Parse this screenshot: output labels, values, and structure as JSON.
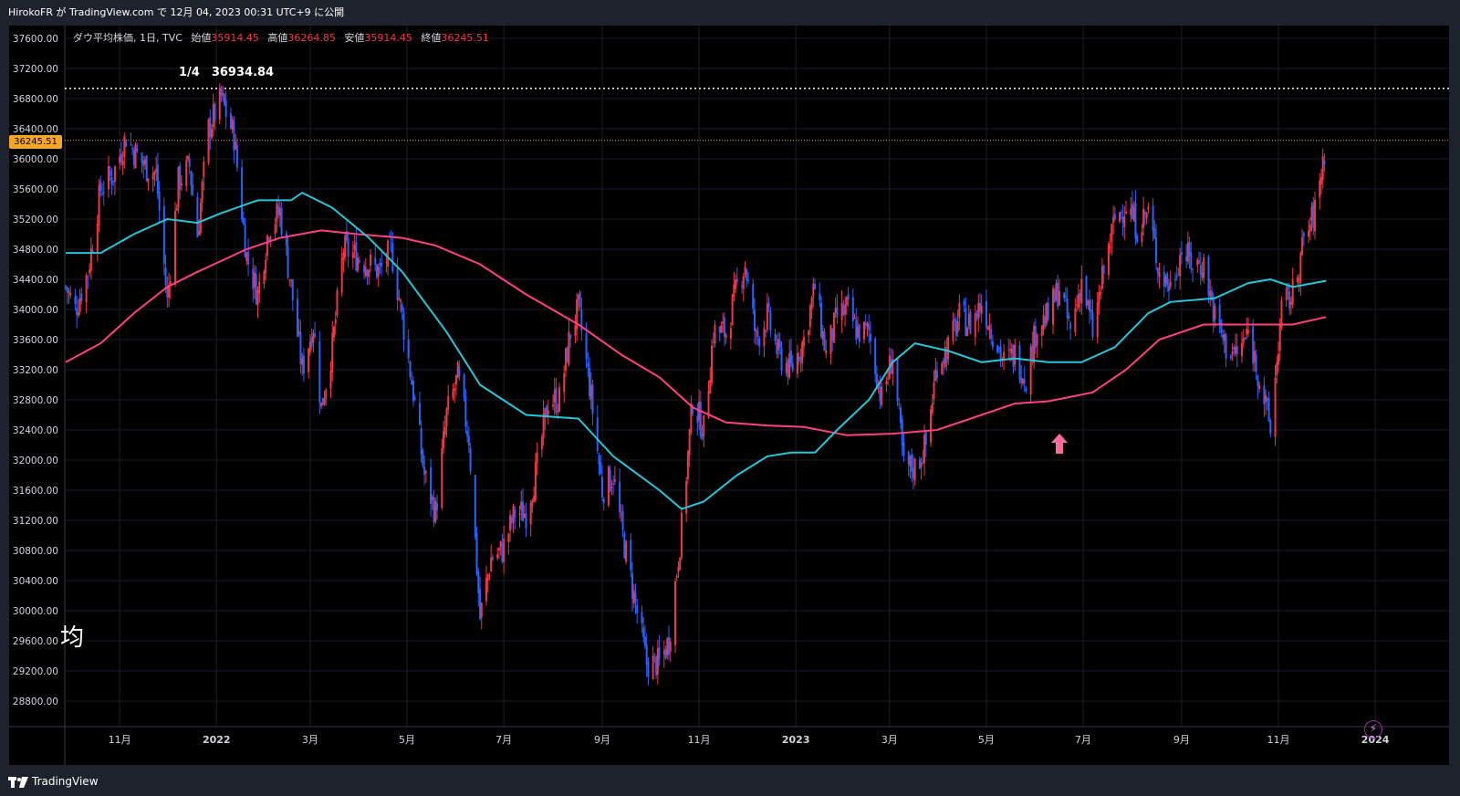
{
  "header": {
    "publish_text": "HirokoFR が TradingView.com で 12月 04, 2023 00:31 UTC+9 に公開"
  },
  "legend": {
    "symbol": "ダウ平均株価, 1日, TVC",
    "open_label": "始値",
    "open": "35914.45",
    "high_label": "高値",
    "high": "36264.85",
    "low_label": "安値",
    "low": "35914.45",
    "close_label": "終値",
    "close": "36245.51"
  },
  "annotation": {
    "text": "1/4　36934.84"
  },
  "watermark_text": "均",
  "price_tag": "36245.51",
  "footer": {
    "brand": "TradingView"
  },
  "colors": {
    "up": "#f23645",
    "down": "#2962ff",
    "ma_fast": "#26c6da",
    "ma_slow": "#ff4081",
    "price_line": "#f5a623",
    "arrow": "#ff6b9d"
  },
  "chart_data": {
    "type": "candlestick",
    "ylim": [
      28500,
      37800
    ],
    "yticks": [
      "37600.00",
      "37200.00",
      "36800.00",
      "36400.00",
      "36000.00",
      "35600.00",
      "35200.00",
      "34800.00",
      "34400.00",
      "34000.00",
      "33600.00",
      "33200.00",
      "32800.00",
      "32400.00",
      "32000.00",
      "31600.00",
      "31200.00",
      "30800.00",
      "30400.00",
      "30000.00",
      "29600.00",
      "29200.00",
      "28800.00"
    ],
    "xticks": [
      {
        "label": "11月",
        "date": "2021-11-01"
      },
      {
        "label": "2022",
        "date": "2022-01-01"
      },
      {
        "label": "3月",
        "date": "2022-03-01"
      },
      {
        "label": "5月",
        "date": "2022-05-01"
      },
      {
        "label": "7月",
        "date": "2022-07-01"
      },
      {
        "label": "9月",
        "date": "2022-09-01"
      },
      {
        "label": "11月",
        "date": "2022-11-01"
      },
      {
        "label": "2023",
        "date": "2023-01-01"
      },
      {
        "label": "3月",
        "date": "2023-03-01"
      },
      {
        "label": "5月",
        "date": "2023-05-01"
      },
      {
        "label": "7月",
        "date": "2023-07-01"
      },
      {
        "label": "9月",
        "date": "2023-09-01"
      },
      {
        "label": "11月",
        "date": "2023-11-01"
      },
      {
        "label": "2024",
        "date": "2024-01-01"
      }
    ],
    "x_range": [
      "2021-09-28",
      "2024-02-05"
    ],
    "price_series": [
      [
        "2021-09-28",
        34300
      ],
      [
        "2021-10-04",
        34000
      ],
      [
        "2021-10-12",
        34500
      ],
      [
        "2021-10-20",
        35600
      ],
      [
        "2021-10-28",
        35800
      ],
      [
        "2021-11-05",
        36300
      ],
      [
        "2021-11-10",
        36100
      ],
      [
        "2021-11-17",
        35900
      ],
      [
        "2021-11-24",
        35800
      ],
      [
        "2021-12-01",
        34100
      ],
      [
        "2021-12-08",
        35700
      ],
      [
        "2021-12-15",
        35900
      ],
      [
        "2021-12-20",
        35000
      ],
      [
        "2021-12-27",
        36400
      ],
      [
        "2022-01-04",
        36800
      ],
      [
        "2022-01-12",
        36300
      ],
      [
        "2022-01-20",
        34700
      ],
      [
        "2022-01-27",
        34200
      ],
      [
        "2022-02-03",
        35100
      ],
      [
        "2022-02-10",
        35300
      ],
      [
        "2022-02-17",
        34300
      ],
      [
        "2022-02-24",
        33200
      ],
      [
        "2022-03-03",
        33800
      ],
      [
        "2022-03-08",
        32700
      ],
      [
        "2022-03-15",
        33500
      ],
      [
        "2022-03-22",
        34800
      ],
      [
        "2022-03-31",
        34700
      ],
      [
        "2022-04-07",
        34600
      ],
      [
        "2022-04-14",
        34500
      ],
      [
        "2022-04-21",
        34800
      ],
      [
        "2022-04-28",
        33900
      ],
      [
        "2022-05-05",
        32900
      ],
      [
        "2022-05-12",
        31800
      ],
      [
        "2022-05-19",
        31300
      ],
      [
        "2022-05-26",
        32600
      ],
      [
        "2022-06-02",
        33100
      ],
      [
        "2022-06-09",
        32300
      ],
      [
        "2022-06-16",
        29900
      ],
      [
        "2022-06-23",
        30700
      ],
      [
        "2022-06-30",
        30800
      ],
      [
        "2022-07-08",
        31300
      ],
      [
        "2022-07-15",
        31300
      ],
      [
        "2022-07-22",
        31900
      ],
      [
        "2022-07-29",
        32800
      ],
      [
        "2022-08-05",
        32800
      ],
      [
        "2022-08-12",
        33700
      ],
      [
        "2022-08-17",
        34000
      ],
      [
        "2022-08-24",
        33000
      ],
      [
        "2022-09-01",
        31600
      ],
      [
        "2022-09-08",
        31800
      ],
      [
        "2022-09-13",
        31100
      ],
      [
        "2022-09-21",
        30200
      ],
      [
        "2022-09-29",
        29300
      ],
      [
        "2022-10-07",
        29300
      ],
      [
        "2022-10-13",
        29600
      ],
      [
        "2022-10-21",
        31100
      ],
      [
        "2022-10-28",
        32800
      ],
      [
        "2022-11-04",
        32400
      ],
      [
        "2022-11-10",
        33700
      ],
      [
        "2022-11-18",
        33700
      ],
      [
        "2022-11-25",
        34300
      ],
      [
        "2022-11-30",
        34600
      ],
      [
        "2022-12-07",
        33600
      ],
      [
        "2022-12-14",
        33900
      ],
      [
        "2022-12-21",
        33400
      ],
      [
        "2022-12-29",
        33200
      ],
      [
        "2023-01-06",
        33600
      ],
      [
        "2023-01-13",
        34300
      ],
      [
        "2023-01-20",
        33400
      ],
      [
        "2023-01-27",
        33900
      ],
      [
        "2023-02-02",
        34000
      ],
      [
        "2023-02-09",
        33700
      ],
      [
        "2023-02-16",
        33700
      ],
      [
        "2023-02-24",
        32800
      ],
      [
        "2023-03-03",
        33400
      ],
      [
        "2023-03-10",
        31900
      ],
      [
        "2023-03-17",
        31900
      ],
      [
        "2023-03-24",
        32200
      ],
      [
        "2023-03-31",
        33300
      ],
      [
        "2023-04-07",
        33500
      ],
      [
        "2023-04-14",
        33900
      ],
      [
        "2023-04-21",
        33800
      ],
      [
        "2023-04-28",
        34100
      ],
      [
        "2023-05-05",
        33700
      ],
      [
        "2023-05-12",
        33300
      ],
      [
        "2023-05-19",
        33400
      ],
      [
        "2023-05-26",
        33100
      ],
      [
        "2023-06-02",
        33800
      ],
      [
        "2023-06-09",
        33900
      ],
      [
        "2023-06-16",
        34300
      ],
      [
        "2023-06-23",
        33700
      ],
      [
        "2023-06-30",
        34400
      ],
      [
        "2023-07-07",
        33700
      ],
      [
        "2023-07-14",
        34500
      ],
      [
        "2023-07-21",
        35200
      ],
      [
        "2023-07-28",
        35400
      ],
      [
        "2023-08-04",
        35100
      ],
      [
        "2023-08-11",
        35300
      ],
      [
        "2023-08-18",
        34500
      ],
      [
        "2023-08-25",
        34300
      ],
      [
        "2023-09-01",
        34800
      ],
      [
        "2023-09-08",
        34600
      ],
      [
        "2023-09-15",
        34600
      ],
      [
        "2023-09-22",
        33900
      ],
      [
        "2023-09-29",
        33500
      ],
      [
        "2023-10-06",
        33400
      ],
      [
        "2023-10-13",
        33700
      ],
      [
        "2023-10-20",
        33100
      ],
      [
        "2023-10-27",
        32400
      ],
      [
        "2023-11-03",
        34000
      ],
      [
        "2023-11-10",
        34200
      ],
      [
        "2023-11-17",
        34900
      ],
      [
        "2023-11-24",
        35300
      ],
      [
        "2023-12-01",
        36245
      ]
    ],
    "ma_fast_series": [
      [
        "2021-09-28",
        34750
      ],
      [
        "2021-10-20",
        34750
      ],
      [
        "2021-11-10",
        35000
      ],
      [
        "2021-12-01",
        35200
      ],
      [
        "2021-12-20",
        35150
      ],
      [
        "2022-01-04",
        35280
      ],
      [
        "2022-01-27",
        35450
      ],
      [
        "2022-02-17",
        35450
      ],
      [
        "2022-02-24",
        35550
      ],
      [
        "2022-03-15",
        35350
      ],
      [
        "2022-04-07",
        34950
      ],
      [
        "2022-04-28",
        34500
      ],
      [
        "2022-05-26",
        33700
      ],
      [
        "2022-06-16",
        33000
      ],
      [
        "2022-07-15",
        32600
      ],
      [
        "2022-08-17",
        32550
      ],
      [
        "2022-09-08",
        32050
      ],
      [
        "2022-10-07",
        31600
      ],
      [
        "2022-10-21",
        31350
      ],
      [
        "2022-11-04",
        31450
      ],
      [
        "2022-11-25",
        31800
      ],
      [
        "2022-12-14",
        32050
      ],
      [
        "2022-12-29",
        32100
      ],
      [
        "2023-01-13",
        32100
      ],
      [
        "2023-01-27",
        32400
      ],
      [
        "2023-02-16",
        32800
      ],
      [
        "2023-03-03",
        33300
      ],
      [
        "2023-03-17",
        33550
      ],
      [
        "2023-04-07",
        33450
      ],
      [
        "2023-04-28",
        33300
      ],
      [
        "2023-05-19",
        33350
      ],
      [
        "2023-06-09",
        33300
      ],
      [
        "2023-06-30",
        33300
      ],
      [
        "2023-07-21",
        33500
      ],
      [
        "2023-08-11",
        33950
      ],
      [
        "2023-08-25",
        34100
      ],
      [
        "2023-09-22",
        34150
      ],
      [
        "2023-10-13",
        34350
      ],
      [
        "2023-10-27",
        34400
      ],
      [
        "2023-11-10",
        34300
      ],
      [
        "2023-12-01",
        34380
      ]
    ],
    "ma_slow_series": [
      [
        "2021-09-28",
        33300
      ],
      [
        "2021-10-20",
        33550
      ],
      [
        "2021-11-10",
        33950
      ],
      [
        "2021-12-01",
        34300
      ],
      [
        "2021-12-20",
        34500
      ],
      [
        "2022-01-20",
        34800
      ],
      [
        "2022-02-10",
        34950
      ],
      [
        "2022-03-08",
        35050
      ],
      [
        "2022-03-31",
        35000
      ],
      [
        "2022-04-28",
        34950
      ],
      [
        "2022-05-19",
        34850
      ],
      [
        "2022-06-16",
        34600
      ],
      [
        "2022-07-15",
        34200
      ],
      [
        "2022-08-17",
        33800
      ],
      [
        "2022-09-13",
        33400
      ],
      [
        "2022-10-07",
        33100
      ],
      [
        "2022-10-28",
        32700
      ],
      [
        "2022-11-18",
        32500
      ],
      [
        "2022-12-14",
        32460
      ],
      [
        "2023-01-06",
        32440
      ],
      [
        "2023-02-02",
        32330
      ],
      [
        "2023-03-03",
        32350
      ],
      [
        "2023-03-31",
        32400
      ],
      [
        "2023-04-28",
        32600
      ],
      [
        "2023-05-19",
        32750
      ],
      [
        "2023-06-09",
        32780
      ],
      [
        "2023-07-07",
        32900
      ],
      [
        "2023-07-28",
        33200
      ],
      [
        "2023-08-18",
        33600
      ],
      [
        "2023-09-15",
        33800
      ],
      [
        "2023-10-13",
        33800
      ],
      [
        "2023-11-10",
        33800
      ],
      [
        "2023-12-01",
        33900
      ]
    ],
    "reference_line": {
      "date": "2022-01-04",
      "value": 36934.84
    },
    "current_price": 36245.51,
    "marker": {
      "type": "up-arrow",
      "date": "2023-05-26"
    }
  }
}
